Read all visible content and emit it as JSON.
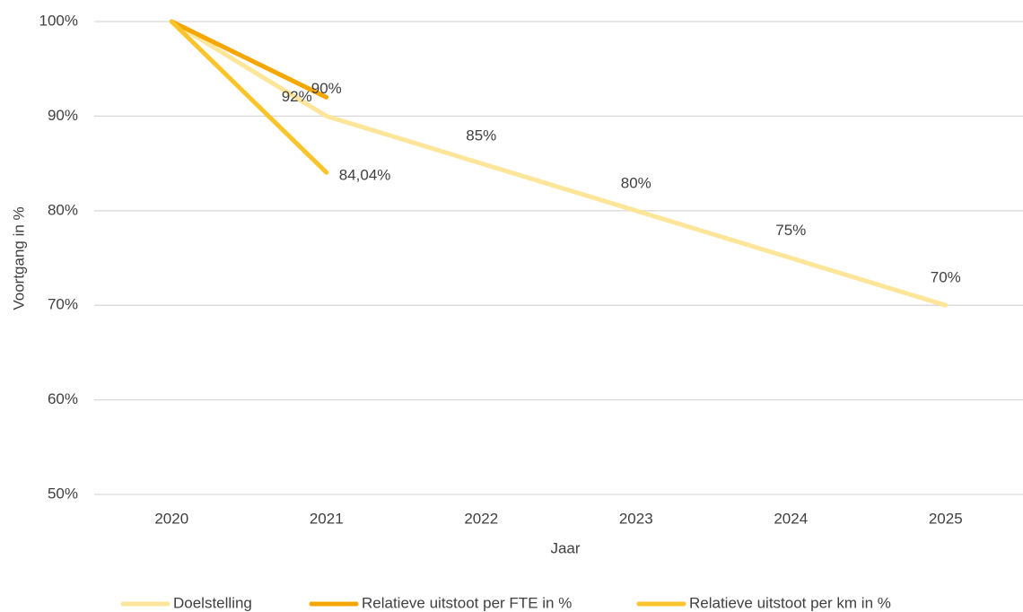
{
  "chart_data": {
    "type": "line",
    "x_label": "Jaar",
    "y_label": "Voortgang in %",
    "categories": [
      "2020",
      "2021",
      "2022",
      "2023",
      "2024",
      "2025"
    ],
    "ylim": [
      50,
      100
    ],
    "yticks": [
      {
        "value": 50,
        "label": "50%"
      },
      {
        "value": 60,
        "label": "60%"
      },
      {
        "value": 70,
        "label": "70%"
      },
      {
        "value": 80,
        "label": "80%"
      },
      {
        "value": 90,
        "label": "90%"
      },
      {
        "value": 100,
        "label": "100%"
      }
    ],
    "grid": true,
    "legend": "bottom",
    "series": [
      {
        "name": "Doelstelling",
        "color": "#fde59a",
        "values": [
          100,
          90,
          85,
          80,
          75,
          70
        ],
        "value_labels": [
          null,
          "90%",
          "85%",
          "80%",
          "75%",
          "70%"
        ]
      },
      {
        "name": "Relatieve uitstoot per FTE in %",
        "color": "#f5a700",
        "values": [
          100,
          92,
          null,
          null,
          null,
          null
        ],
        "value_labels": [
          null,
          "92%",
          null,
          null,
          null,
          null
        ]
      },
      {
        "name": "Relatieve uitstoot per km in %",
        "color": "#fbc42b",
        "values": [
          100,
          84.04,
          null,
          null,
          null,
          null
        ],
        "value_labels": [
          null,
          "84,04%",
          null,
          null,
          null,
          null
        ]
      }
    ]
  }
}
